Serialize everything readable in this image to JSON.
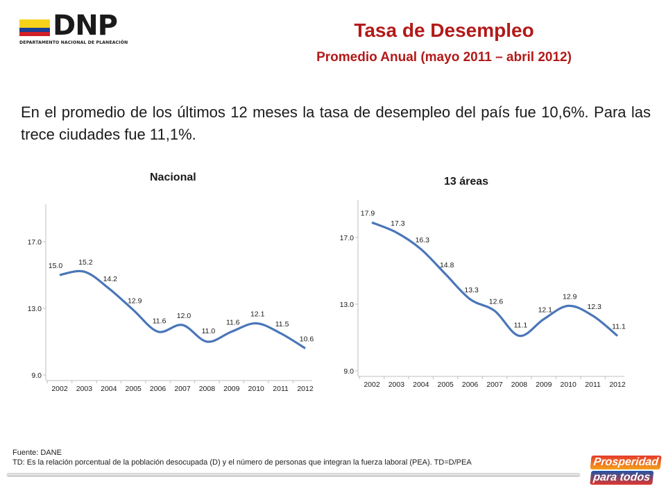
{
  "logo": {
    "text": "DNP",
    "subtitle": "DEPARTAMENTO NACIONAL DE PLANEACIÓN"
  },
  "header": {
    "title": "Tasa de Desempleo",
    "subtitle": "Promedio Anual (mayo 2011 – abril 2012)"
  },
  "intro": "En el promedio de los últimos 12 meses la tasa de desempleo del país fue 10,6%. Para las trece ciudades fue 11,1%.",
  "chart_data": [
    {
      "type": "line",
      "title": "Nacional",
      "categories": [
        "2002",
        "2003",
        "2004",
        "2005",
        "2006",
        "2007",
        "2008",
        "2009",
        "2010",
        "2011",
        "2012"
      ],
      "values": [
        15.0,
        15.2,
        14.2,
        12.9,
        11.6,
        12.0,
        11.0,
        11.6,
        12.1,
        11.5,
        10.6
      ],
      "value_labels": [
        "15.0",
        "15.2",
        "14.2",
        "12.9",
        "11.6",
        "12.0",
        "11.0",
        "11.6",
        "12.1",
        "11.5",
        "10.6"
      ],
      "y_ticks": [
        "9.0",
        "13.0",
        "17.0"
      ],
      "ylim": [
        9.0,
        17.0
      ],
      "xlabel": "",
      "ylabel": "",
      "grid": false,
      "line_color": "#4a76b8"
    },
    {
      "type": "line",
      "title": "13 áreas",
      "categories": [
        "2002",
        "2003",
        "2004",
        "2005",
        "2006",
        "2007",
        "2008",
        "2009",
        "2010",
        "2011",
        "2012"
      ],
      "values": [
        17.9,
        17.3,
        16.3,
        14.8,
        13.3,
        12.6,
        11.1,
        12.1,
        12.9,
        12.3,
        11.1
      ],
      "value_labels": [
        "17.9",
        "17.3",
        "16.3",
        "14.8",
        "13.3",
        "12.6",
        "11.1",
        "12.1",
        "12.9",
        "12.3",
        "11.1"
      ],
      "y_ticks": [
        "9.0",
        "13.0",
        "17.0"
      ],
      "ylim": [
        9.0,
        17.0
      ],
      "xlabel": "",
      "ylabel": "",
      "grid": false,
      "line_color": "#4a76b8"
    }
  ],
  "footer": {
    "source": "Fuente: DANE",
    "note": "TD:  Es la relación porcentual de la población desocupada (D) y el número de personas que integran la fuerza laboral (PEA). TD=D/PEA"
  },
  "badge": {
    "line1": "Prosperidad",
    "line2": "para todos"
  },
  "colors": {
    "title": "#b31919",
    "series": "#4a76b8",
    "axis": "#bfbfbf"
  }
}
